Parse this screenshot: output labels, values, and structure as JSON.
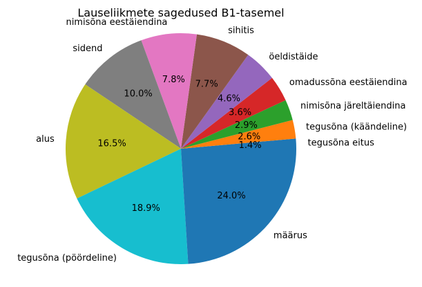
{
  "chart_data": {
    "type": "pie",
    "title": "Lauseliikmete sagedused B1-tasemel",
    "start_angle_deg": 0,
    "direction": "counterclockwise",
    "categories": [
      "tegusõna eitus",
      "tegusõna (käändeline)",
      "nimisõna järeltäiendina",
      "omadussõna eestäiendina",
      "öeldistäide",
      "sihitis",
      "nimisõna eestäiendina",
      "sidend",
      "alus",
      "tegusõna (pöördeline)",
      "määrus"
    ],
    "values": [
      1.4,
      2.6,
      2.9,
      3.6,
      4.6,
      7.7,
      7.8,
      10.0,
      16.5,
      18.9,
      24.0
    ],
    "pct_labels": [
      "1.4%",
      "2.6%",
      "2.9%",
      "3.6%",
      "4.6%",
      "7.7%",
      "7.8%",
      "10.0%",
      "16.5%",
      "18.9%",
      "24.0%"
    ],
    "colors": [
      "#1f77b4",
      "#ff7f0e",
      "#2ca02c",
      "#d62728",
      "#9467bd",
      "#8c564b",
      "#e377c2",
      "#7f7f7f",
      "#bcbd22",
      "#17becf",
      "#1f77b4"
    ],
    "legend": "none"
  }
}
